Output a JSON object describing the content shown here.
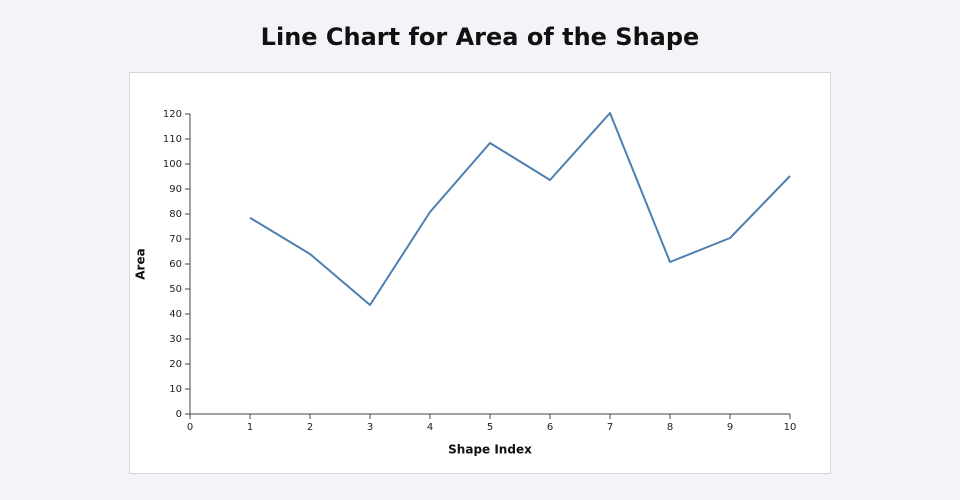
{
  "chart_data": {
    "type": "line",
    "title": "Line Chart for Area of the Shape",
    "x_label": "Shape Index",
    "y_label": "Area",
    "x": [
      1,
      2,
      3,
      4,
      5,
      6,
      7,
      8,
      9,
      10
    ],
    "series": [
      {
        "name": "Area",
        "color": "#4e7fb0",
        "values": [
          78.5,
          64,
          43.6,
          80.8,
          108.4,
          93.6,
          120.4,
          60.8,
          70.4,
          95.2
        ]
      }
    ],
    "xlim": [
      0,
      10
    ],
    "xticks": [
      0,
      1,
      2,
      3,
      4,
      5,
      6,
      7,
      8,
      9,
      10
    ],
    "ylim": [
      0,
      120
    ],
    "yticks": [
      0,
      10,
      20,
      30,
      40,
      50,
      60,
      70,
      80,
      90,
      100,
      110,
      120
    ],
    "grid": false
  }
}
